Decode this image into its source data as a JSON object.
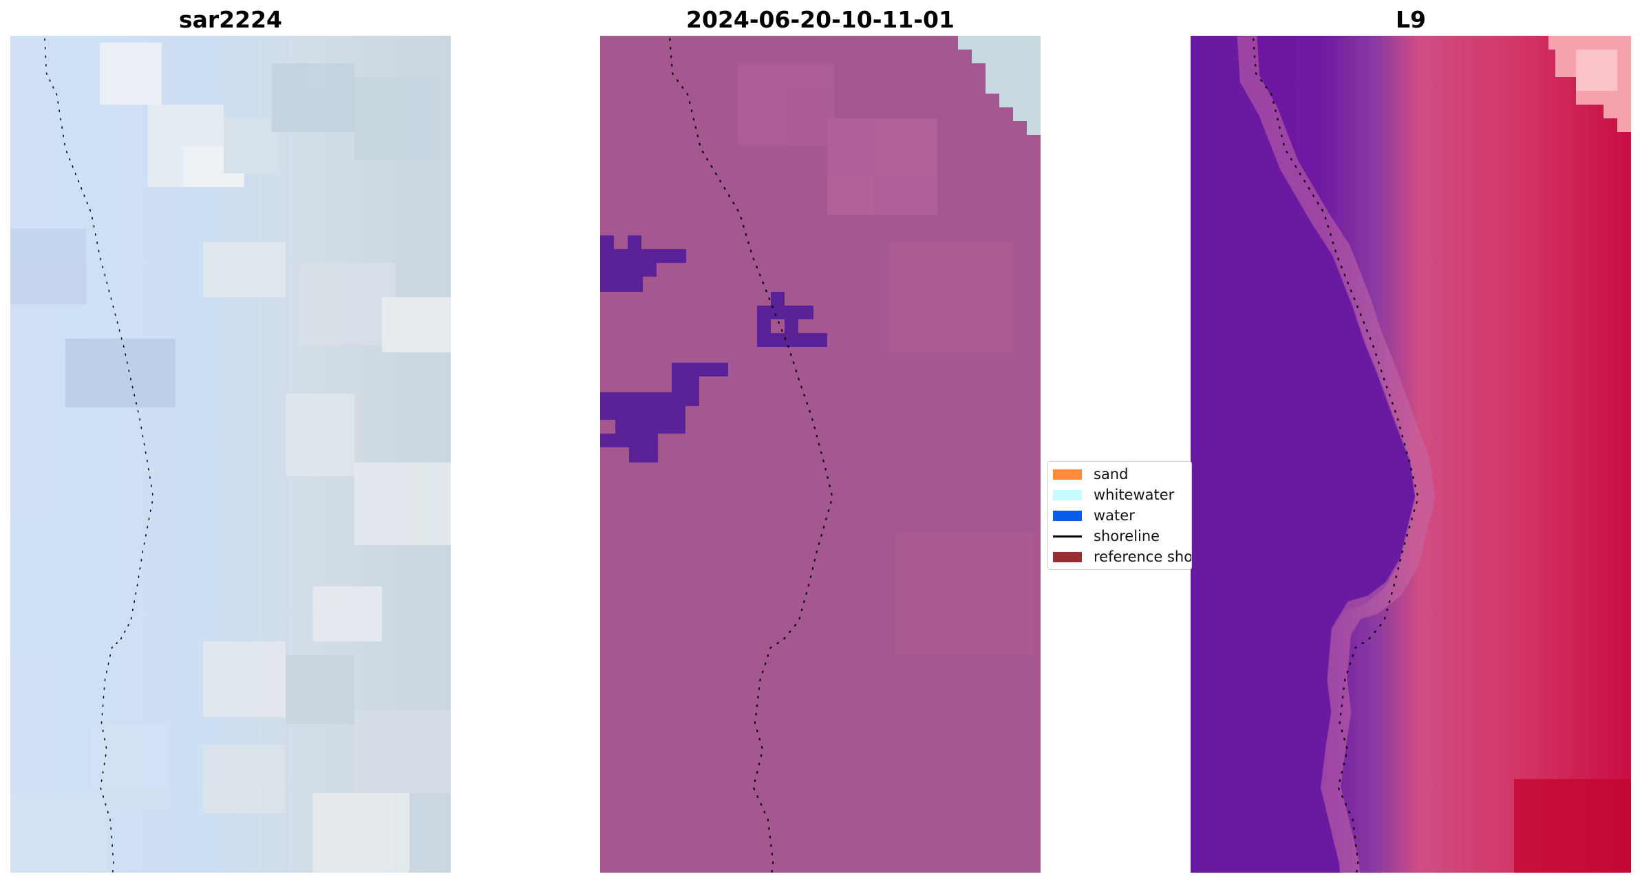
{
  "panels": [
    {
      "title": "sar2224"
    },
    {
      "title": "2024-06-20-10-11-01"
    },
    {
      "title": "L9"
    }
  ],
  "legend": {
    "items": [
      {
        "label": "sand",
        "color": "#ff8c3c",
        "kind": "patch"
      },
      {
        "label": "whitewater",
        "color": "#c8fbff",
        "kind": "patch"
      },
      {
        "label": "water",
        "color": "#0a5cf0",
        "kind": "patch"
      },
      {
        "label": "shoreline",
        "color": "#000000",
        "kind": "line"
      },
      {
        "label": "reference sho",
        "color": "#9a2c34",
        "kind": "patch"
      }
    ]
  },
  "colors": {
    "sar_land": "#c9d7e2",
    "sar_sea": "#cfe0f4",
    "classified_background": "#a5578f",
    "classified_water": "#5b2297",
    "l9_land": "#cc2b5c",
    "l9_sea": "#6a13a1"
  }
}
